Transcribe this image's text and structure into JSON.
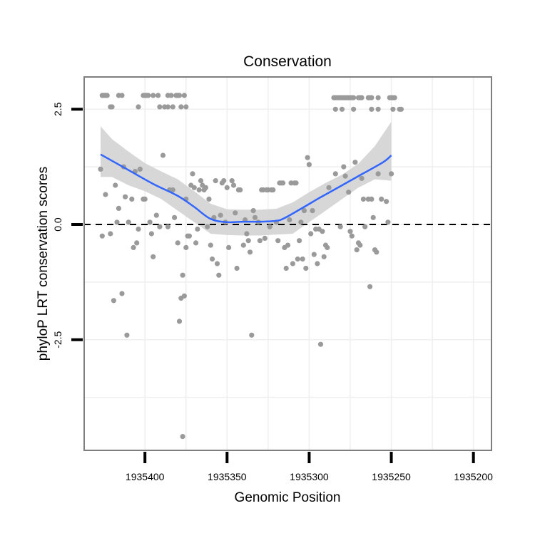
{
  "chart_data": {
    "type": "scatter",
    "title": "Conservation",
    "xlabel": "Genomic Position",
    "ylabel": "phyloP LRT conservation scores",
    "x_reversed": true,
    "xlim": [
      1935437,
      1935189
    ],
    "ylim": [
      -4.9,
      3.2
    ],
    "x_ticks": [
      1935400,
      1935350,
      1935300,
      1935250,
      1935200
    ],
    "x_tick_labels": [
      "1935400",
      "1935350",
      "1935300",
      "1935250",
      "1935200"
    ],
    "y_ticks": [
      -2.5,
      0.0,
      2.5
    ],
    "y_tick_labels": [
      "-2.5",
      "0.0",
      "2.5"
    ],
    "grid": true,
    "reference_line": {
      "y": 0,
      "style": "dashed",
      "color": "#000000"
    },
    "colors": {
      "points": "#9a9a9a",
      "smooth_line": "#3366ff",
      "confidence_band": "#d3d3d3",
      "grid": "#efefef",
      "panel_border": "#7f7f7f"
    },
    "points": [
      [
        1935426,
        2.8
      ],
      [
        1935425,
        2.8
      ],
      [
        1935424,
        2.8
      ],
      [
        1935423,
        2.8
      ],
      [
        1935421,
        2.55
      ],
      [
        1935420,
        2.55
      ],
      [
        1935416,
        2.8
      ],
      [
        1935414,
        2.8
      ],
      [
        1935404,
        2.55
      ],
      [
        1935401,
        2.8
      ],
      [
        1935400,
        2.8
      ],
      [
        1935399,
        2.8
      ],
      [
        1935398,
        2.8
      ],
      [
        1935395,
        2.8
      ],
      [
        1935392,
        2.8
      ],
      [
        1935391,
        2.55
      ],
      [
        1935388,
        2.55
      ],
      [
        1935386,
        2.8
      ],
      [
        1935386,
        2.55
      ],
      [
        1935384,
        2.8
      ],
      [
        1935383,
        2.55
      ],
      [
        1935381,
        2.8
      ],
      [
        1935380,
        2.8
      ],
      [
        1935379,
        2.8
      ],
      [
        1935378,
        2.55
      ],
      [
        1935376,
        2.8
      ],
      [
        1935375,
        2.55
      ],
      [
        1935427,
        1.2
      ],
      [
        1935426,
        -0.25
      ],
      [
        1935424,
        0.65
      ],
      [
        1935421,
        -0.2
      ],
      [
        1935419,
        -1.65
      ],
      [
        1935418,
        0.85
      ],
      [
        1935417,
        0.05
      ],
      [
        1935416,
        0.35
      ],
      [
        1935414,
        -1.5
      ],
      [
        1935413,
        1.25
      ],
      [
        1935412,
        0.6
      ],
      [
        1935411,
        -2.4
      ],
      [
        1935410,
        0.05
      ],
      [
        1935408,
        0.55
      ],
      [
        1935407,
        -0.5
      ],
      [
        1935406,
        1.15
      ],
      [
        1935405,
        -0.4
      ],
      [
        1935404,
        -0.1
      ],
      [
        1935403,
        1.2
      ],
      [
        1935401,
        0.55
      ],
      [
        1935400,
        0.55
      ],
      [
        1935397,
        0.05
      ],
      [
        1935396,
        -0.2
      ],
      [
        1935395,
        -0.7
      ],
      [
        1935393,
        0.2
      ],
      [
        1935391,
        -0.05
      ],
      [
        1935389,
        1.5
      ],
      [
        1935386,
        -0.05
      ],
      [
        1935385,
        0.75
      ],
      [
        1935383,
        0.75
      ],
      [
        1935382,
        0.15
      ],
      [
        1935380,
        -0.4
      ],
      [
        1935379,
        -2.1
      ],
      [
        1935378,
        -1.6
      ],
      [
        1935377,
        -1.1
      ],
      [
        1935377,
        -4.6
      ],
      [
        1935376,
        -1.55
      ],
      [
        1935375,
        0.55
      ],
      [
        1935375,
        -0.5
      ],
      [
        1935374,
        -0.25
      ],
      [
        1935373,
        -0.25
      ],
      [
        1935372,
        0.85
      ],
      [
        1935371,
        1.1
      ],
      [
        1935370,
        0.8
      ],
      [
        1935369,
        -0.4
      ],
      [
        1935368,
        -0.1
      ],
      [
        1935367,
        0.75
      ],
      [
        1935366,
        0.95
      ],
      [
        1935365,
        0.85
      ],
      [
        1935364,
        0.75
      ],
      [
        1935363,
        0.8
      ],
      [
        1935362,
        -0.05
      ],
      [
        1935361,
        0.55
      ],
      [
        1935360,
        -0.45
      ],
      [
        1935359,
        -0.75
      ],
      [
        1935358,
        0.15
      ],
      [
        1935357,
        0.95
      ],
      [
        1935356,
        -0.85
      ],
      [
        1935355,
        -1.1
      ],
      [
        1935354,
        0.2
      ],
      [
        1935353,
        0.9
      ],
      [
        1935352,
        0.95
      ],
      [
        1935351,
        0.05
      ],
      [
        1935350,
        0.8
      ],
      [
        1935349,
        -0.5
      ],
      [
        1935347,
        0.95
      ],
      [
        1935346,
        0.85
      ],
      [
        1935345,
        0.25
      ],
      [
        1935344,
        -0.95
      ],
      [
        1935343,
        0.75
      ],
      [
        1935342,
        0.75
      ],
      [
        1935340,
        -0.45
      ],
      [
        1935339,
        0.1
      ],
      [
        1935338,
        -0.2
      ],
      [
        1935337,
        -0.35
      ],
      [
        1935336,
        -0.6
      ],
      [
        1935335,
        -2.4
      ],
      [
        1935334,
        0.3
      ],
      [
        1935333,
        0.15
      ],
      [
        1935331,
        0.05
      ],
      [
        1935330,
        -0.35
      ],
      [
        1935329,
        0.75
      ],
      [
        1935328,
        0.75
      ],
      [
        1935327,
        -0.3
      ],
      [
        1935326,
        0.75
      ],
      [
        1935325,
        0.75
      ],
      [
        1935324,
        -0.05
      ],
      [
        1935323,
        0.75
      ],
      [
        1935322,
        0.75
      ],
      [
        1935320,
        0.05
      ],
      [
        1935319,
        -0.35
      ],
      [
        1935318,
        0.9
      ],
      [
        1935317,
        0.9
      ],
      [
        1935316,
        0.9
      ],
      [
        1935315,
        -0.5
      ],
      [
        1935314,
        -0.95
      ],
      [
        1935313,
        -0.45
      ],
      [
        1935312,
        0.1
      ],
      [
        1935311,
        0.9
      ],
      [
        1935310,
        -0.85
      ],
      [
        1935309,
        0.9
      ],
      [
        1935308,
        0.9
      ],
      [
        1935307,
        -0.75
      ],
      [
        1935306,
        -0.35
      ],
      [
        1935305,
        0.05
      ],
      [
        1935304,
        -0.75
      ],
      [
        1935303,
        0.3
      ],
      [
        1935302,
        -0.95
      ],
      [
        1935301,
        1.45
      ],
      [
        1935300,
        1.3
      ],
      [
        1935299,
        -0.2
      ],
      [
        1935298,
        0.3
      ],
      [
        1935297,
        -0.65
      ],
      [
        1935296,
        -0.1
      ],
      [
        1935295,
        -0.85
      ],
      [
        1935294,
        -0.1
      ],
      [
        1935293,
        -2.6
      ],
      [
        1935292,
        -0.15
      ],
      [
        1935291,
        -0.7
      ],
      [
        1935290,
        -0.45
      ],
      [
        1935289,
        -0.5
      ],
      [
        1935288,
        0.8
      ]
    ],
    "points_right_top": [
      [
        1935285,
        2.75
      ],
      [
        1935284,
        2.75
      ],
      [
        1935283,
        2.75
      ],
      [
        1935282,
        2.75
      ],
      [
        1935281,
        2.75
      ],
      [
        1935280,
        2.75
      ],
      [
        1935279,
        2.75
      ],
      [
        1935278,
        2.75
      ],
      [
        1935277,
        2.75
      ],
      [
        1935276,
        2.75
      ],
      [
        1935275,
        2.75
      ],
      [
        1935274,
        2.75
      ],
      [
        1935273,
        2.75
      ],
      [
        1935270,
        2.75
      ],
      [
        1935269,
        2.75
      ],
      [
        1935268,
        2.75
      ],
      [
        1935264,
        2.75
      ],
      [
        1935263,
        2.75
      ],
      [
        1935262,
        2.75
      ],
      [
        1935258,
        2.75
      ],
      [
        1935251,
        2.75
      ],
      [
        1935250,
        2.75
      ],
      [
        1935249,
        2.75
      ],
      [
        1935248,
        2.75
      ],
      [
        1935284,
        2.5
      ],
      [
        1935280,
        2.5
      ],
      [
        1935273,
        2.5
      ],
      [
        1935262,
        2.5
      ],
      [
        1935258,
        2.5
      ],
      [
        1935249,
        2.5
      ],
      [
        1935245,
        2.5
      ],
      [
        1935244,
        2.5
      ]
    ],
    "points_right": [
      [
        1935284,
        1.1
      ],
      [
        1935281,
        -0.05
      ],
      [
        1935279,
        1.25
      ],
      [
        1935278,
        1.05
      ],
      [
        1935276,
        0.7
      ],
      [
        1935275,
        -0.15
      ],
      [
        1935274,
        -0.25
      ],
      [
        1935272,
        1.35
      ],
      [
        1935271,
        -0.55
      ],
      [
        1935270,
        -0.4
      ],
      [
        1935269,
        -0.45
      ],
      [
        1935268,
        1.0
      ],
      [
        1935267,
        0.55
      ],
      [
        1935266,
        -0.05
      ],
      [
        1935264,
        0.55
      ],
      [
        1935263,
        -1.35
      ],
      [
        1935262,
        0.55
      ],
      [
        1935261,
        0.15
      ],
      [
        1935260,
        -0.55
      ],
      [
        1935259,
        -0.6
      ],
      [
        1935258,
        1.1
      ],
      [
        1935256,
        0.55
      ],
      [
        1935253,
        0.5
      ],
      [
        1935252,
        0.05
      ],
      [
        1935250,
        1.1
      ]
    ],
    "smooth_line": [
      [
        1935427,
        1.52
      ],
      [
        1935410,
        1.18
      ],
      [
        1935395,
        0.88
      ],
      [
        1935380,
        0.62
      ],
      [
        1935370,
        0.38
      ],
      [
        1935360,
        0.12
      ],
      [
        1935350,
        0.05
      ],
      [
        1935340,
        0.06
      ],
      [
        1935330,
        0.06
      ],
      [
        1935320,
        0.08
      ],
      [
        1935315,
        0.14
      ],
      [
        1935305,
        0.34
      ],
      [
        1935295,
        0.55
      ],
      [
        1935285,
        0.75
      ],
      [
        1935270,
        1.05
      ],
      [
        1935255,
        1.35
      ],
      [
        1935250,
        1.5
      ]
    ],
    "band_upper": [
      [
        1935427,
        2.13
      ],
      [
        1935420,
        1.85
      ],
      [
        1935410,
        1.58
      ],
      [
        1935400,
        1.33
      ],
      [
        1935390,
        1.15
      ],
      [
        1935380,
        0.98
      ],
      [
        1935370,
        0.72
      ],
      [
        1935360,
        0.45
      ],
      [
        1935350,
        0.33
      ],
      [
        1935340,
        0.32
      ],
      [
        1935330,
        0.32
      ],
      [
        1935320,
        0.34
      ],
      [
        1935310,
        0.48
      ],
      [
        1935300,
        0.7
      ],
      [
        1935290,
        0.9
      ],
      [
        1935280,
        1.08
      ],
      [
        1935270,
        1.32
      ],
      [
        1935260,
        1.7
      ],
      [
        1935250,
        2.23
      ]
    ],
    "band_lower": [
      [
        1935250,
        0.95
      ],
      [
        1935260,
        0.98
      ],
      [
        1935270,
        0.8
      ],
      [
        1935280,
        0.55
      ],
      [
        1935290,
        0.3
      ],
      [
        1935300,
        0.05
      ],
      [
        1935310,
        -0.2
      ],
      [
        1935320,
        -0.22
      ],
      [
        1935330,
        -0.24
      ],
      [
        1935340,
        -0.24
      ],
      [
        1935350,
        -0.23
      ],
      [
        1935360,
        -0.2
      ],
      [
        1935370,
        0.05
      ],
      [
        1935380,
        0.3
      ],
      [
        1935390,
        0.55
      ],
      [
        1935400,
        0.72
      ],
      [
        1935410,
        0.85
      ],
      [
        1935420,
        1.03
      ],
      [
        1935427,
        1.03
      ]
    ]
  }
}
